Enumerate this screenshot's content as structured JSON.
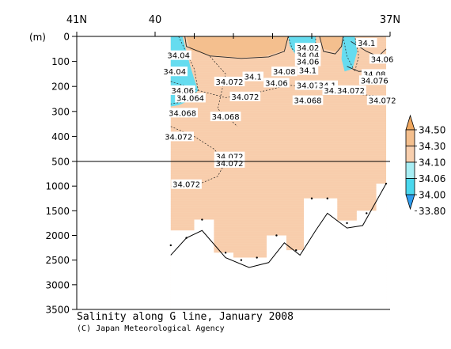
{
  "chart_data": {
    "type": "area",
    "title": "Salinity along G line, January 2008",
    "credit": "(C) Japan Meteorological Agency",
    "y_unit": "(m)",
    "x_ticks": [
      {
        "lat": 41,
        "label": "41N"
      },
      {
        "lat": 40,
        "label": "40"
      },
      {
        "lat": 37,
        "label": "37N"
      }
    ],
    "x_minor_ticks": [
      39.5,
      39.0,
      38.5,
      38.0
    ],
    "xlim": [
      41,
      37
    ],
    "y_ticks_upper": [
      0,
      100,
      200,
      300,
      400,
      500
    ],
    "y_ticks_lower": [
      1000,
      1500,
      2000,
      2500,
      3000,
      3500
    ],
    "ylim_upper": [
      0,
      500
    ],
    "ylim_lower": [
      500,
      3500
    ],
    "stations": [
      {
        "lat": 39.8,
        "bottom_depth": 2200,
        "data_depth": 1900
      },
      {
        "lat": 39.6,
        "bottom_depth": 2050,
        "data_depth": 1900
      },
      {
        "lat": 39.4,
        "bottom_depth": 1680,
        "data_depth": 1680
      },
      {
        "lat": 39.1,
        "bottom_depth": 2350,
        "data_depth": 2350
      },
      {
        "lat": 38.9,
        "bottom_depth": 2500,
        "data_depth": 2450
      },
      {
        "lat": 38.7,
        "bottom_depth": 2450,
        "data_depth": 2450
      },
      {
        "lat": 38.45,
        "bottom_depth": 2000,
        "data_depth": 2000
      },
      {
        "lat": 38.2,
        "bottom_depth": 2300,
        "data_depth": 2300
      },
      {
        "lat": 38.0,
        "bottom_depth": 1250,
        "data_depth": 1250
      },
      {
        "lat": 37.8,
        "bottom_depth": 1250,
        "data_depth": 1250
      },
      {
        "lat": 37.55,
        "bottom_depth": 1750,
        "data_depth": 1700
      },
      {
        "lat": 37.3,
        "bottom_depth": 1550,
        "data_depth": 1500
      },
      {
        "lat": 37.05,
        "bottom_depth": 950,
        "data_depth": 950
      }
    ],
    "bottom_profile": [
      {
        "lat": 39.8,
        "depth": 2400
      },
      {
        "lat": 39.6,
        "depth": 2050
      },
      {
        "lat": 39.4,
        "depth": 1900
      },
      {
        "lat": 39.1,
        "depth": 2450
      },
      {
        "lat": 38.8,
        "depth": 2650
      },
      {
        "lat": 38.55,
        "depth": 2550
      },
      {
        "lat": 38.35,
        "depth": 2150
      },
      {
        "lat": 38.15,
        "depth": 2400
      },
      {
        "lat": 37.95,
        "depth": 1900
      },
      {
        "lat": 37.8,
        "depth": 1550
      },
      {
        "lat": 37.55,
        "depth": 1850
      },
      {
        "lat": 37.35,
        "depth": 1800
      },
      {
        "lat": 37.05,
        "depth": 950
      }
    ],
    "low_salinity_regions": [
      {
        "name": "west",
        "polygon": [
          [
            39.8,
            0
          ],
          [
            39.65,
            0
          ],
          [
            39.6,
            60
          ],
          [
            39.55,
            120
          ],
          [
            39.5,
            170
          ],
          [
            39.45,
            215
          ],
          [
            39.55,
            255
          ],
          [
            39.7,
            275
          ],
          [
            39.8,
            280
          ]
        ]
      },
      {
        "name": "central",
        "polygon": [
          [
            38.3,
            0
          ],
          [
            37.95,
            0
          ],
          [
            37.95,
            40
          ],
          [
            38.05,
            85
          ],
          [
            38.2,
            75
          ],
          [
            38.28,
            40
          ]
        ]
      },
      {
        "name": "east",
        "polygon": [
          [
            37.6,
            0
          ],
          [
            37.45,
            0
          ],
          [
            37.42,
            60
          ],
          [
            37.48,
            130
          ],
          [
            37.58,
            140
          ],
          [
            37.62,
            90
          ]
        ]
      }
    ],
    "contour_labels": [
      {
        "text": "34.04",
        "lat": 39.7,
        "depth": 75
      },
      {
        "text": "34.04",
        "lat": 39.75,
        "depth": 140
      },
      {
        "text": "34.06",
        "lat": 39.65,
        "depth": 215
      },
      {
        "text": "34.064",
        "lat": 39.55,
        "depth": 245
      },
      {
        "text": "34.072",
        "lat": 39.05,
        "depth": 180
      },
      {
        "text": "34.1",
        "lat": 38.75,
        "depth": 160
      },
      {
        "text": "34.08",
        "lat": 38.35,
        "depth": 140
      },
      {
        "text": "34.06",
        "lat": 38.45,
        "depth": 185
      },
      {
        "text": "34.072",
        "lat": 38.85,
        "depth": 240
      },
      {
        "text": "34.068",
        "lat": 39.65,
        "depth": 305
      },
      {
        "text": "34.068",
        "lat": 39.1,
        "depth": 320
      },
      {
        "text": "34.068",
        "lat": 38.05,
        "depth": 255
      },
      {
        "text": "34.07",
        "lat": 38.05,
        "depth": 195
      },
      {
        "text": "34.1",
        "lat": 37.8,
        "depth": 195
      },
      {
        "text": "34.08",
        "lat": 37.7,
        "depth": 215
      },
      {
        "text": "34.072",
        "lat": 37.5,
        "depth": 215
      },
      {
        "text": "34.072",
        "lat": 37.1,
        "depth": 255
      },
      {
        "text": "34.08",
        "lat": 37.2,
        "depth": 150
      },
      {
        "text": "34.076",
        "lat": 37.2,
        "depth": 175
      },
      {
        "text": "34.02",
        "lat": 38.05,
        "depth": 45
      },
      {
        "text": "34.04",
        "lat": 38.05,
        "depth": 75
      },
      {
        "text": "34.06",
        "lat": 38.05,
        "depth": 100
      },
      {
        "text": "34.1",
        "lat": 38.05,
        "depth": 135
      },
      {
        "text": "34.1",
        "lat": 37.3,
        "depth": 25
      },
      {
        "text": "34.06",
        "lat": 37.1,
        "depth": 90
      },
      {
        "text": "34.072",
        "lat": 39.7,
        "depth": 400
      },
      {
        "text": "34.072",
        "lat": 39.05,
        "depth": 480
      },
      {
        "text": "34.072",
        "lat": 39.05,
        "depth": 530
      },
      {
        "text": "34.072",
        "lat": 39.6,
        "depth": 960
      }
    ],
    "colorbar": {
      "levels": [
        "34.50",
        "34.30",
        "34.10",
        "34.06",
        "34.00",
        "33.80"
      ],
      "colors": [
        "#f0a860",
        "#f4bf8e",
        "#f8cfae",
        "#a8eef4",
        "#4ad8ee",
        "#2f9df0"
      ]
    },
    "colors": {
      "fill_main": "#f8cfae",
      "fill_upper": "#f4bf8e",
      "fill_low": "#66dcef",
      "bottom_line": "#000000"
    }
  }
}
